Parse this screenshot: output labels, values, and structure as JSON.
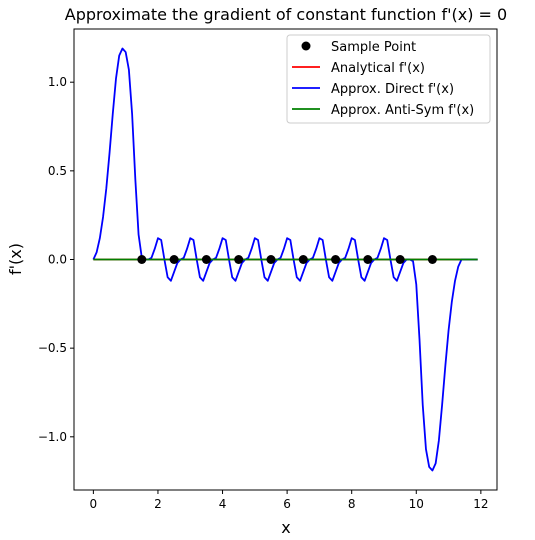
{
  "chart_data": {
    "type": "line",
    "title": "Approximate the gradient of constant function f'(x) = 0",
    "xlabel": "x",
    "ylabel": "f'(x)",
    "xlim": [
      -0.6,
      12.5
    ],
    "ylim": [
      -1.3,
      1.3
    ],
    "x_ticks": [
      0,
      2,
      4,
      6,
      8,
      10,
      12
    ],
    "y_ticks": [
      1.0,
      0.5,
      0.0,
      -0.5,
      -1.0
    ],
    "x_tick_labels": [
      "0",
      "2",
      "4",
      "6",
      "8",
      "10",
      "12"
    ],
    "y_tick_labels": [
      "1.0",
      "0.5",
      "0.0",
      "−0.5",
      "−1.0"
    ],
    "grid": false,
    "legend_position": "top-right",
    "legend": [
      {
        "label": "Sample Point",
        "kind": "marker",
        "color": "#000000"
      },
      {
        "label": "Analytical f'(x)",
        "kind": "line",
        "color": "#ff0000"
      },
      {
        "label": "Approx. Direct f'(x)",
        "kind": "line",
        "color": "#0000ff"
      },
      {
        "label": "Approx. Anti-Sym f'(x)",
        "kind": "line",
        "color": "#008000"
      }
    ],
    "series": [
      {
        "name": "Sample Point",
        "kind": "scatter",
        "color": "#000000",
        "x": [
          1.5,
          2.5,
          3.5,
          4.5,
          5.5,
          6.5,
          7.5,
          8.5,
          9.5,
          10.5
        ],
        "y": [
          0,
          0,
          0,
          0,
          0,
          0,
          0,
          0,
          0,
          0
        ]
      },
      {
        "name": "Analytical f'(x)",
        "kind": "line",
        "color": "#ff0000",
        "x": [
          0,
          11.9
        ],
        "y": [
          0,
          0
        ]
      },
      {
        "name": "Approx. Direct f'(x)",
        "kind": "line",
        "color": "#0000ff",
        "x": [
          0,
          0.1,
          0.2,
          0.3,
          0.4,
          0.5,
          0.6,
          0.7,
          0.8,
          0.9,
          1.0,
          1.1,
          1.2,
          1.3,
          1.4,
          1.5,
          1.6,
          1.7,
          1.8,
          1.9,
          2.0,
          2.1,
          2.2,
          2.3,
          2.4,
          2.5,
          2.6,
          2.7,
          2.8,
          2.9,
          3.0,
          3.1,
          3.2,
          3.3,
          3.4,
          3.5,
          3.6,
          3.7,
          3.8,
          3.9,
          4.0,
          4.1,
          4.2,
          4.3,
          4.4,
          4.5,
          4.6,
          4.7,
          4.8,
          4.9,
          5.0,
          5.1,
          5.2,
          5.3,
          5.4,
          5.5,
          5.6,
          5.7,
          5.8,
          5.9,
          6.0,
          6.1,
          6.2,
          6.3,
          6.4,
          6.5,
          6.6,
          6.7,
          6.8,
          6.9,
          7.0,
          7.1,
          7.2,
          7.3,
          7.4,
          7.5,
          7.6,
          7.7,
          7.8,
          7.9,
          8.0,
          8.1,
          8.2,
          8.3,
          8.4,
          8.5,
          8.6,
          8.7,
          8.8,
          8.9,
          9.0,
          9.1,
          9.2,
          9.3,
          9.4,
          9.5,
          9.6,
          9.7,
          9.8,
          9.9,
          10.0,
          10.1,
          10.2,
          10.3,
          10.4,
          10.5,
          10.6,
          10.7,
          10.8,
          10.9,
          11.0,
          11.1,
          11.2,
          11.3,
          11.4,
          11.5,
          11.6,
          11.7,
          11.8,
          11.9
        ],
        "y": [
          0.0,
          0.04,
          0.12,
          0.24,
          0.4,
          0.6,
          0.82,
          1.02,
          1.15,
          1.19,
          1.17,
          1.07,
          0.82,
          0.45,
          0.14,
          0.01,
          0.0,
          0.0,
          0.01,
          0.06,
          0.12,
          0.11,
          0.0,
          -0.1,
          -0.12,
          -0.07,
          -0.02,
          0.0,
          0.01,
          0.06,
          0.12,
          0.11,
          0.0,
          -0.1,
          -0.12,
          -0.07,
          -0.02,
          0.0,
          0.01,
          0.06,
          0.12,
          0.11,
          0.0,
          -0.1,
          -0.12,
          -0.07,
          -0.02,
          0.0,
          0.01,
          0.06,
          0.12,
          0.11,
          0.0,
          -0.1,
          -0.12,
          -0.07,
          -0.02,
          0.0,
          0.01,
          0.06,
          0.12,
          0.11,
          0.0,
          -0.1,
          -0.12,
          -0.07,
          -0.02,
          0.0,
          0.01,
          0.06,
          0.12,
          0.11,
          0.0,
          -0.1,
          -0.12,
          -0.07,
          -0.02,
          0.0,
          0.01,
          0.06,
          0.12,
          0.11,
          0.0,
          -0.1,
          -0.12,
          -0.07,
          -0.02,
          0.0,
          0.01,
          0.06,
          0.12,
          0.11,
          0.0,
          -0.1,
          -0.12,
          -0.07,
          -0.02,
          0.0,
          0.0,
          -0.01,
          -0.14,
          -0.45,
          -0.82,
          -1.07,
          -1.17,
          -1.19,
          -1.15,
          -1.02,
          -0.82,
          -0.6,
          -0.4,
          -0.24,
          -0.12,
          -0.04,
          0.0,
          0.0,
          0.0,
          0.0,
          0.0,
          0.0
        ],
        "note_range": "x from 0 to 11.9"
      },
      {
        "name": "Approx. Anti-Sym f'(x)",
        "kind": "line",
        "color": "#008000",
        "x": [
          0,
          11.9
        ],
        "y": [
          0,
          0
        ]
      }
    ]
  }
}
